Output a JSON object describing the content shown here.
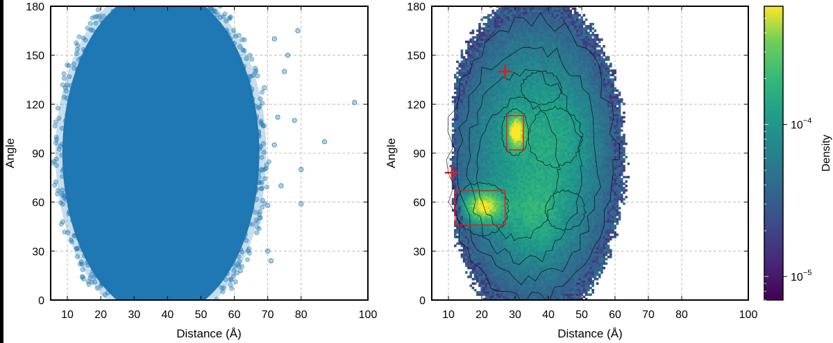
{
  "colors": {
    "scatter_point": "#1f77b4",
    "box_outline": "#e31a1c",
    "marker": "#e31a1c",
    "grid": "#b0b0b0"
  },
  "chart_data": [
    {
      "type": "scatter",
      "xlabel": "Distance (Å)",
      "ylabel": "Angle",
      "xlim": [
        5,
        100
      ],
      "ylim": [
        0,
        180
      ],
      "xticks": [
        10,
        20,
        30,
        40,
        50,
        60,
        70,
        80,
        100
      ],
      "yticks": [
        0,
        30,
        60,
        90,
        120,
        150,
        180
      ],
      "grid": true,
      "dense_region": {
        "distance_range": [
          9,
          68
        ],
        "angle_range": [
          0,
          180
        ],
        "center": [
          35,
          85
        ]
      },
      "outlier_points": [
        [
          96,
          121
        ],
        [
          87,
          97
        ],
        [
          80,
          80
        ],
        [
          79,
          165
        ],
        [
          76,
          150
        ],
        [
          78,
          110
        ],
        [
          72,
          95
        ],
        [
          74,
          70
        ],
        [
          70,
          30
        ],
        [
          71,
          24
        ],
        [
          69,
          130
        ],
        [
          72,
          160
        ],
        [
          80,
          59
        ],
        [
          70,
          58
        ],
        [
          75,
          140
        ],
        [
          73,
          112
        ]
      ]
    },
    {
      "type": "heatmap",
      "xlabel": "Distance (Å)",
      "ylabel": "Angle",
      "xlim": [
        5,
        100
      ],
      "ylim": [
        0,
        180
      ],
      "xticks": [
        10,
        20,
        30,
        40,
        50,
        60,
        70,
        80,
        100
      ],
      "yticks": [
        0,
        30,
        60,
        90,
        120,
        150,
        180
      ],
      "grid": true,
      "contours": true,
      "colormap": "viridis",
      "colorbar": {
        "label": "Density",
        "scale": "log",
        "range": [
          7e-06,
          0.0006
        ],
        "ticks": [
          {
            "base": "10",
            "exp": "−5",
            "value": 1e-05
          },
          {
            "base": "10",
            "exp": "−4",
            "value": 0.0001
          }
        ]
      },
      "highlight_boxes": [
        {
          "distance": [
            12,
            27
          ],
          "angle": [
            46,
            67
          ]
        },
        {
          "distance": [
            27.5,
            32.5
          ],
          "angle": [
            92,
            113
          ]
        }
      ],
      "markers": [
        {
          "distance": 11,
          "angle": 78
        },
        {
          "distance": 27,
          "angle": 140
        }
      ]
    }
  ]
}
